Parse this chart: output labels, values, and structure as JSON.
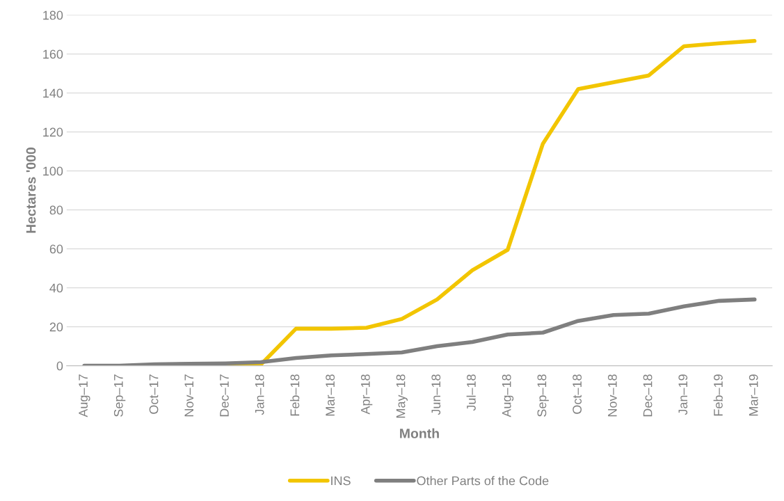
{
  "chart_data": {
    "type": "line",
    "xlabel": "Month",
    "ylabel": "Hectares '000",
    "categories": [
      "Aug–17",
      "Sep–17",
      "Oct–17",
      "Nov–17",
      "Dec–17",
      "Jan–18",
      "Feb–18",
      "Mar–18",
      "Apr–18",
      "May–18",
      "Jun–18",
      "Jul–18",
      "Aug–18",
      "Sep–18",
      "Oct–18",
      "Nov–18",
      "Dec–18",
      "Jan–19",
      "Feb–19",
      "Mar–19"
    ],
    "series": [
      {
        "name": "INS",
        "color": "#f2c500",
        "values": [
          null,
          null,
          null,
          0,
          0,
          0.5,
          19,
          19,
          19.5,
          24,
          34,
          49,
          59.5,
          114,
          142,
          145.5,
          149,
          164,
          165.5,
          166.7
        ]
      },
      {
        "name": "Other Parts of the Code",
        "color": "#7f7f7f",
        "values": [
          0,
          0,
          0.7,
          1,
          1.2,
          1.8,
          4,
          5.3,
          6,
          6.8,
          10,
          12.2,
          16,
          17,
          23,
          26,
          26.7,
          30.5,
          33.3,
          34
        ]
      }
    ],
    "ylim": [
      0,
      180
    ],
    "yticks": [
      0,
      20,
      40,
      60,
      80,
      100,
      120,
      140,
      160,
      180
    ],
    "grid": "y",
    "legend": "bottom",
    "marker": "none",
    "line_style": "solid"
  }
}
